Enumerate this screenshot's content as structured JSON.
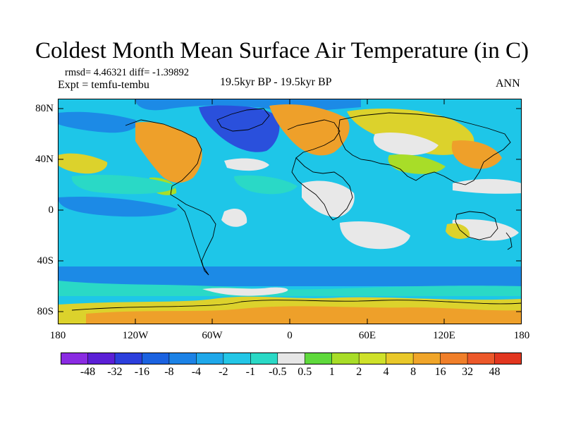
{
  "title": "Coldest Month Mean Surface Air Temperature (in C)",
  "stats": "rmsd= 4.46321 diff= -1.39892",
  "experiment": "Expt = temfu-tembu",
  "period": "19.5kyr BP - 19.5kyr BP",
  "season": "ANN",
  "y_axis_labels": [
    "80N",
    "40N",
    "0",
    "40S",
    "80S"
  ],
  "x_axis_labels": [
    "180",
    "120W",
    "60W",
    "0",
    "60E",
    "120E",
    "180"
  ],
  "colorbar": {
    "labels": [
      "-48",
      "-32",
      "-16",
      "-8",
      "-4",
      "-2",
      "-1",
      "-0.5",
      "0.5",
      "1",
      "2",
      "4",
      "8",
      "16",
      "32",
      "48"
    ],
    "colors": [
      "#8a2be2",
      "#5b1fd6",
      "#2c3fdc",
      "#1b62e0",
      "#1c82e6",
      "#1fa8ea",
      "#23c6e6",
      "#2ad9c6",
      "#e6e6e6",
      "#5fd93c",
      "#a8dd28",
      "#cfe12a",
      "#e9c82a",
      "#f0a52a",
      "#f07f2a",
      "#ec582a",
      "#e2361f"
    ]
  },
  "map_colors": {
    "ocean": "#1ec6e8",
    "deep_blue": "#2a50dc",
    "mid_blue": "#1c8ae6",
    "teal": "#2ad9c6",
    "white": "#e8e8e8",
    "green": "#a8dd28",
    "yellow": "#dcd22c",
    "orange": "#eea02a",
    "coast": "#000000"
  }
}
